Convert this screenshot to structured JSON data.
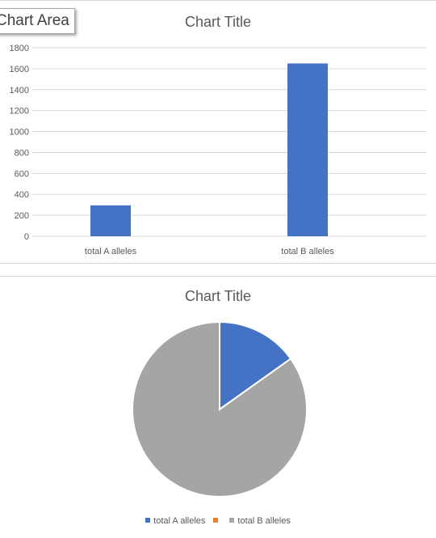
{
  "tooltip": {
    "label": "Chart Area"
  },
  "chart_data": [
    {
      "type": "bar",
      "title": "Chart Title",
      "categories": [
        "total A alleles",
        "total B alleles"
      ],
      "series": [
        {
          "values": [
            295,
            1650
          ],
          "color": "#4472c4"
        }
      ],
      "ylim": [
        0,
        1800
      ],
      "yticks": [
        0,
        200,
        400,
        600,
        800,
        1000,
        1200,
        1400,
        1600,
        1800
      ],
      "grid": true,
      "xlabel": "",
      "ylabel": ""
    },
    {
      "type": "pie",
      "title": "Chart Title",
      "categories": [
        "total A alleles",
        "",
        "total B alleles"
      ],
      "values": [
        295,
        0,
        1650
      ],
      "colors": [
        "#4472c4",
        "#ed7d31",
        "#a5a5a5"
      ],
      "legend": "bottom"
    }
  ]
}
